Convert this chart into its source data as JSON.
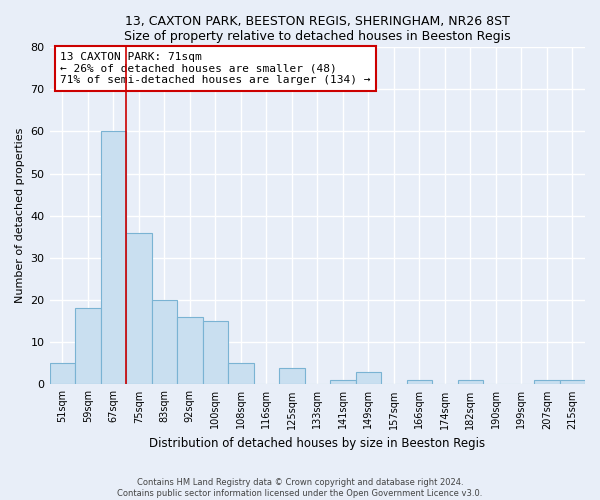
{
  "title1": "13, CAXTON PARK, BEESTON REGIS, SHERINGHAM, NR26 8ST",
  "title2": "Size of property relative to detached houses in Beeston Regis",
  "xlabel": "Distribution of detached houses by size in Beeston Regis",
  "ylabel": "Number of detached properties",
  "bar_labels": [
    "51sqm",
    "59sqm",
    "67sqm",
    "75sqm",
    "83sqm",
    "92sqm",
    "100sqm",
    "108sqm",
    "116sqm",
    "125sqm",
    "133sqm",
    "141sqm",
    "149sqm",
    "157sqm",
    "166sqm",
    "174sqm",
    "182sqm",
    "190sqm",
    "199sqm",
    "207sqm",
    "215sqm"
  ],
  "bar_values": [
    5,
    18,
    60,
    36,
    20,
    16,
    15,
    5,
    0,
    4,
    0,
    1,
    3,
    0,
    1,
    0,
    1,
    0,
    0,
    1,
    1
  ],
  "bar_color": "#c9dff0",
  "bar_edge_color": "#7ab3d3",
  "annotation_line_color": "#cc0000",
  "annotation_line_idx": 2,
  "annotation_box_text": "13 CAXTON PARK: 71sqm\n← 26% of detached houses are smaller (48)\n71% of semi-detached houses are larger (134) →",
  "ylim": [
    0,
    80
  ],
  "yticks": [
    0,
    10,
    20,
    30,
    40,
    50,
    60,
    70,
    80
  ],
  "background_color": "#e8eef8",
  "plot_bg_color": "#e8eef8",
  "footer1": "Contains HM Land Registry data © Crown copyright and database right 2024.",
  "footer2": "Contains public sector information licensed under the Open Government Licence v3.0."
}
